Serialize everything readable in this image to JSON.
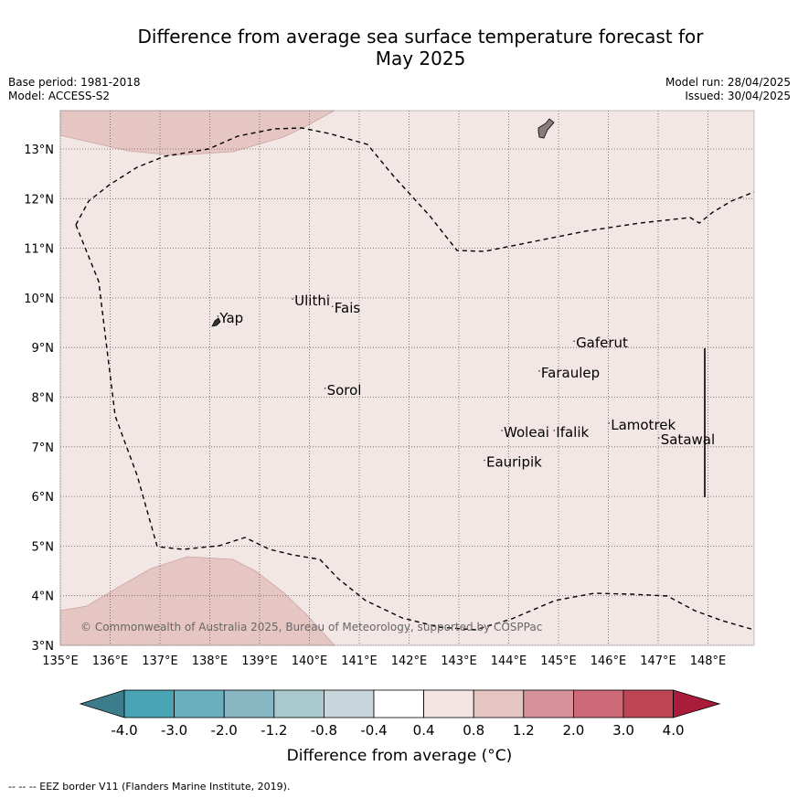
{
  "title_line1": "Difference from average sea surface temperature forecast for",
  "title_line2": "May 2025",
  "base_period": "Base period: 1981-2018",
  "model": "Model: ACCESS-S2",
  "model_run": "Model run: 28/04/2025",
  "issued": "Issued: 30/04/2025",
  "copyright": "© Commonwealth of Australia 2025, Bureau of Meteorology, supported by COSPPac",
  "lon_ticks": [
    "135°E",
    "136°E",
    "137°E",
    "138°E",
    "139°E",
    "140°E",
    "141°E",
    "142°E",
    "143°E",
    "144°E",
    "145°E",
    "146°E",
    "147°E",
    "148°E"
  ],
  "lat_ticks": [
    "3°N",
    "4°N",
    "5°N",
    "6°N",
    "7°N",
    "8°N",
    "9°N",
    "10°N",
    "11°N",
    "12°N",
    "13°N"
  ],
  "places": [
    {
      "name": "Ulithi",
      "lon": 139.7,
      "lat": 9.85
    },
    {
      "name": "Fais",
      "lon": 140.5,
      "lat": 9.7
    },
    {
      "name": "Yap",
      "lon": 138.2,
      "lat": 9.5
    },
    {
      "name": "Gaferut",
      "lon": 145.35,
      "lat": 9.0
    },
    {
      "name": "Faraulep",
      "lon": 144.65,
      "lat": 8.4
    },
    {
      "name": "Sorol",
      "lon": 140.35,
      "lat": 8.05
    },
    {
      "name": "Lamotrek",
      "lon": 146.05,
      "lat": 7.35
    },
    {
      "name": "Woleai",
      "lon": 143.9,
      "lat": 7.2
    },
    {
      "name": "Ifalik",
      "lon": 144.95,
      "lat": 7.2
    },
    {
      "name": "Satawal",
      "lon": 147.05,
      "lat": 7.05
    },
    {
      "name": "Eauripik",
      "lon": 143.55,
      "lat": 6.6
    }
  ],
  "colorbar": {
    "labels": [
      "-4.0",
      "-3.0",
      "-2.0",
      "-1.2",
      "-0.8",
      "-0.4",
      "0.4",
      "0.8",
      "1.2",
      "2.0",
      "3.0",
      "4.0"
    ],
    "colors": [
      "#3d7c8a",
      "#48a3b4",
      "#6aafbd",
      "#88b7c3",
      "#a9c9cf",
      "#c9d6db",
      "#ffffff",
      "#f3e5e4",
      "#e6c4c0",
      "#d69299",
      "#cc6b77",
      "#bf4555",
      "#a91d3b"
    ],
    "label": "Difference from average (°C)"
  },
  "fill_colors": {
    "background_anomaly": "#f3e7e6",
    "warm_patch": "#e6c6c2"
  },
  "footnote": "--  --  -- EEZ border V11 (Flanders Marine Institute, 2019)."
}
